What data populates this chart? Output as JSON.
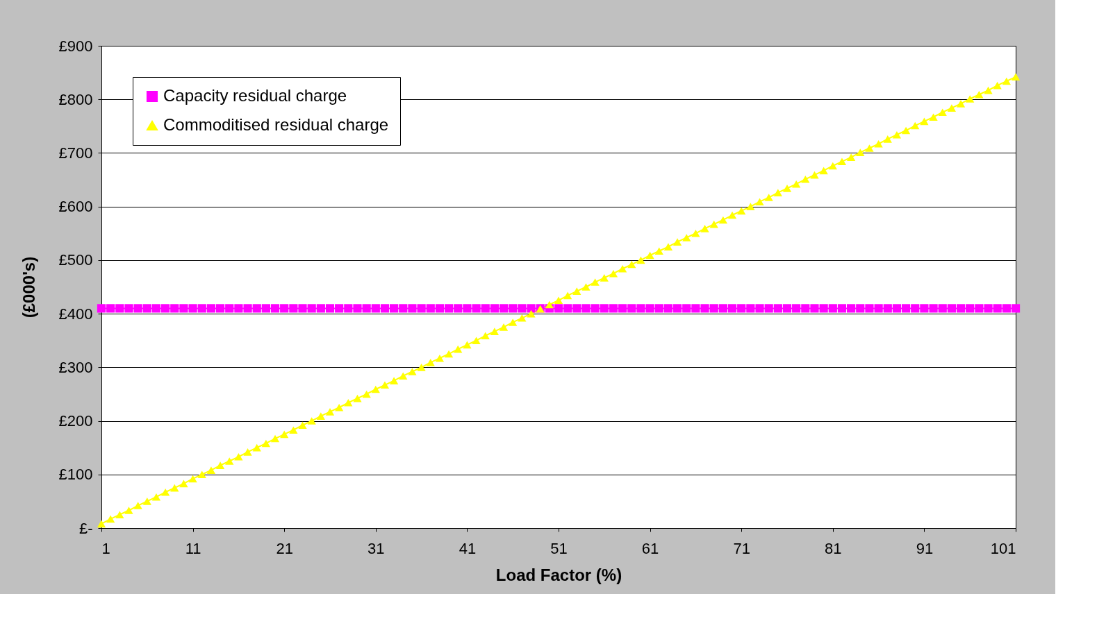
{
  "chart_data": {
    "type": "line",
    "xlabel": "Load Factor (%)",
    "ylabel": "(£000's)",
    "x": [
      1,
      2,
      3,
      4,
      5,
      6,
      7,
      8,
      9,
      10,
      11,
      12,
      13,
      14,
      15,
      16,
      17,
      18,
      19,
      20,
      21,
      22,
      23,
      24,
      25,
      26,
      27,
      28,
      29,
      30,
      31,
      32,
      33,
      34,
      35,
      36,
      37,
      38,
      39,
      40,
      41,
      42,
      43,
      44,
      45,
      46,
      47,
      48,
      49,
      50,
      51,
      52,
      53,
      54,
      55,
      56,
      57,
      58,
      59,
      60,
      61,
      62,
      63,
      64,
      65,
      66,
      67,
      68,
      69,
      70,
      71,
      72,
      73,
      74,
      75,
      76,
      77,
      78,
      79,
      80,
      81,
      82,
      83,
      84,
      85,
      86,
      87,
      88,
      89,
      90,
      91,
      92,
      93,
      94,
      95,
      96,
      97,
      98,
      99,
      100,
      101
    ],
    "xlim": [
      1,
      101
    ],
    "xticks": [
      1,
      11,
      21,
      31,
      41,
      51,
      61,
      71,
      81,
      91,
      101
    ],
    "ylim": [
      0,
      900
    ],
    "yticks": [
      {
        "value": 0,
        "label": "£-"
      },
      {
        "value": 100,
        "label": "£100"
      },
      {
        "value": 200,
        "label": "£200"
      },
      {
        "value": 300,
        "label": "£300"
      },
      {
        "value": 400,
        "label": "£400"
      },
      {
        "value": 500,
        "label": "£500"
      },
      {
        "value": 600,
        "label": "£600"
      },
      {
        "value": 700,
        "label": "£700"
      },
      {
        "value": 800,
        "label": "£800"
      },
      {
        "value": 900,
        "label": "£900"
      }
    ],
    "grid": "y",
    "legend": "top left",
    "series": [
      {
        "name": "Capacity residual charge",
        "color": "#ff00ff",
        "marker": "square",
        "values": [
          410,
          410,
          410,
          410,
          410,
          410,
          410,
          410,
          410,
          410,
          410,
          410,
          410,
          410,
          410,
          410,
          410,
          410,
          410,
          410,
          410,
          410,
          410,
          410,
          410,
          410,
          410,
          410,
          410,
          410,
          410,
          410,
          410,
          410,
          410,
          410,
          410,
          410,
          410,
          410,
          410,
          410,
          410,
          410,
          410,
          410,
          410,
          410,
          410,
          410,
          410,
          410,
          410,
          410,
          410,
          410,
          410,
          410,
          410,
          410,
          410,
          410,
          410,
          410,
          410,
          410,
          410,
          410,
          410,
          410,
          410,
          410,
          410,
          410,
          410,
          410,
          410,
          410,
          410,
          410,
          410,
          410,
          410,
          410,
          410,
          410,
          410,
          410,
          410,
          410,
          410,
          410,
          410,
          410,
          410,
          410,
          410,
          410,
          410,
          410,
          410
        ]
      },
      {
        "name": "Commoditised residual charge",
        "color": "#ffff00",
        "marker": "triangle",
        "values": [
          8,
          17,
          25,
          33,
          42,
          50,
          58,
          67,
          75,
          83,
          92,
          100,
          108,
          117,
          125,
          133,
          142,
          150,
          158,
          167,
          175,
          183,
          192,
          200,
          209,
          217,
          225,
          234,
          242,
          250,
          259,
          267,
          275,
          284,
          292,
          300,
          309,
          317,
          325,
          334,
          342,
          350,
          359,
          367,
          375,
          384,
          392,
          400,
          409,
          417,
          425,
          434,
          442,
          450,
          459,
          467,
          475,
          484,
          492,
          500,
          509,
          517,
          525,
          534,
          542,
          550,
          559,
          567,
          575,
          584,
          592,
          600,
          609,
          617,
          626,
          634,
          642,
          651,
          659,
          667,
          676,
          684,
          692,
          701,
          709,
          717,
          726,
          734,
          742,
          751,
          759,
          767,
          776,
          784,
          792,
          801,
          809,
          817,
          826,
          834,
          842
        ]
      }
    ]
  }
}
